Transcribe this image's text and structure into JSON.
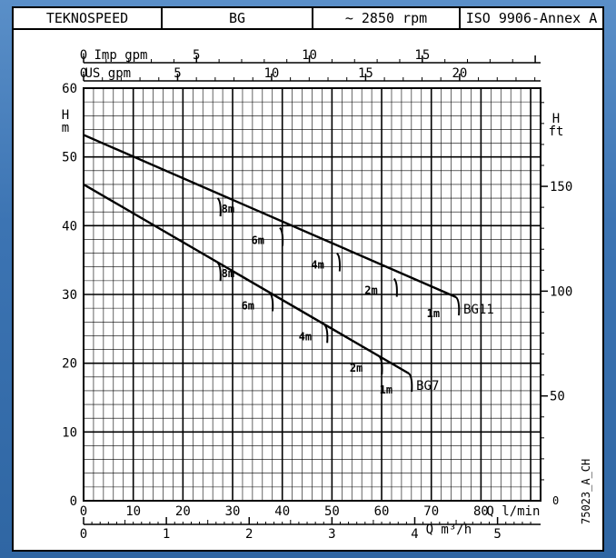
{
  "header": {
    "brand": "TEKNOSPEED",
    "model": "BG",
    "speed": "~ 2850 rpm",
    "standard": "ISO 9906-Annex A"
  },
  "chart_data": {
    "type": "line",
    "x_primary": {
      "label": "Q  l/min",
      "range": [
        0,
        92
      ],
      "ticks": [
        0,
        10,
        20,
        30,
        40,
        50,
        60,
        70,
        80
      ]
    },
    "x_m3h": {
      "label": "Q  m³/h",
      "ticks": [
        0,
        1,
        2,
        3,
        4,
        5
      ]
    },
    "x_usgpm": {
      "label": "US gpm",
      "ticks": [
        0,
        5,
        10,
        15,
        20
      ]
    },
    "x_impgpm": {
      "label": "Imp gpm",
      "ticks": [
        0,
        5,
        10,
        15
      ]
    },
    "y_left": {
      "label_h": "H",
      "label_unit": "m",
      "range": [
        0,
        60
      ],
      "ticks": [
        0,
        10,
        20,
        30,
        40,
        50,
        60
      ]
    },
    "y_right": {
      "label_h": "H",
      "label_unit": "ft",
      "ticks": [
        0,
        50,
        100,
        150
      ]
    },
    "grid": true,
    "series": [
      {
        "name": "BG11",
        "points": [
          [
            0,
            53.2
          ],
          [
            75,
            29.6
          ]
        ],
        "markers": [
          {
            "label": "8m",
            "q": 27,
            "h": 44.0
          },
          {
            "label": "6m",
            "q": 39.5,
            "h": 39.7
          },
          {
            "label": "4m",
            "q": 51,
            "h": 36.0
          },
          {
            "label": "2m",
            "q": 62.5,
            "h": 32.3
          },
          {
            "label": "1m",
            "q": 75,
            "h": 29.6
          }
        ]
      },
      {
        "name": "BG7",
        "points": [
          [
            0,
            46.0
          ],
          [
            65.5,
            18.5
          ]
        ],
        "markers": [
          {
            "label": "8m",
            "q": 27,
            "h": 34.6
          },
          {
            "label": "6m",
            "q": 37.5,
            "h": 30.2
          },
          {
            "label": "4m",
            "q": 48.5,
            "h": 25.6
          },
          {
            "label": "2m",
            "q": 59.5,
            "h": 21.0
          },
          {
            "label": "1m",
            "q": 65.5,
            "h": 18.5
          }
        ]
      }
    ],
    "annotation": "75023_A_CH"
  }
}
